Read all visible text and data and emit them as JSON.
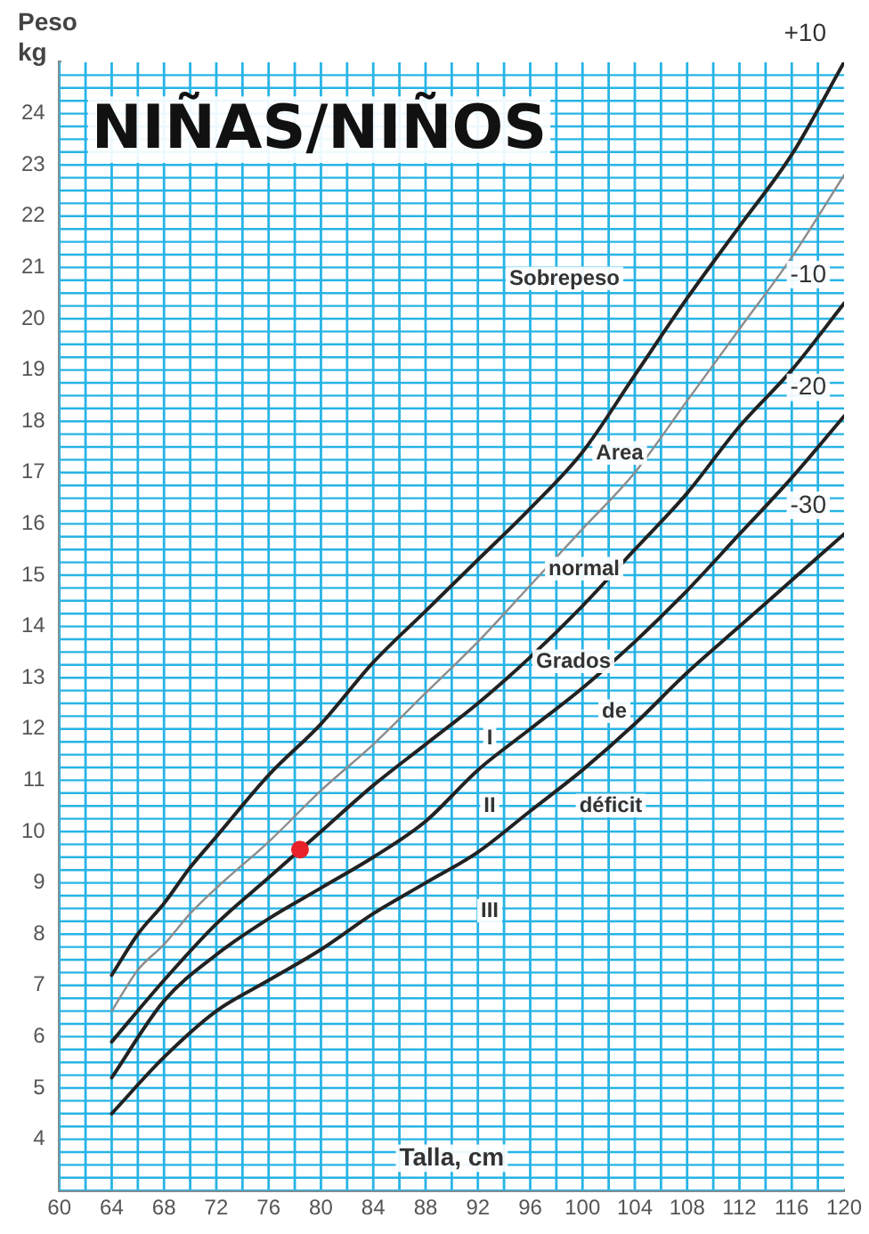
{
  "chart_data": {
    "type": "line",
    "title": "NIÑAS/NIÑOS",
    "xlabel": "Talla, cm",
    "ylabel": "Peso\nkg",
    "xlim": [
      60,
      120
    ],
    "xticks": [
      60,
      64,
      68,
      72,
      76,
      80,
      84,
      88,
      92,
      96,
      100,
      104,
      108,
      112,
      116,
      120
    ],
    "ylim": [
      3,
      25
    ],
    "yticks": [
      {
        "value": 3,
        "label": null
      },
      4,
      5,
      6,
      7,
      8,
      9,
      10,
      11,
      12,
      13,
      14,
      15,
      16,
      17,
      18,
      19,
      20,
      21,
      22,
      23,
      24,
      {
        "value": 25,
        "label": null
      }
    ],
    "grid": true,
    "legend": false,
    "marker": "none",
    "line_style": "solid",
    "series": [
      {
        "name": "+10",
        "color": "#222222",
        "x": [
          64,
          66,
          68,
          70,
          72,
          76,
          80,
          84,
          88,
          92,
          96,
          100,
          104,
          108,
          112,
          116,
          120
        ],
        "values": [
          7.2,
          8.0,
          8.6,
          9.3,
          9.9,
          11.1,
          12.1,
          13.3,
          14.3,
          15.3,
          16.3,
          17.4,
          18.9,
          20.4,
          21.8,
          23.2,
          25.0
        ]
      },
      {
        "color": "#8c8c8c",
        "x": [
          64,
          66,
          68,
          70,
          72,
          76,
          80,
          84,
          88,
          92,
          96,
          100,
          104,
          108,
          112,
          116,
          120
        ],
        "values": [
          6.5,
          7.3,
          7.8,
          8.4,
          8.9,
          9.8,
          10.8,
          11.7,
          12.7,
          13.7,
          14.8,
          15.9,
          17.0,
          18.4,
          19.8,
          21.2,
          22.8
        ]
      },
      {
        "name": "-10",
        "color": "#222222",
        "x": [
          64,
          68,
          72,
          76,
          80,
          84,
          88,
          92,
          96,
          100,
          104,
          108,
          112,
          116,
          120
        ],
        "values": [
          5.9,
          7.1,
          8.2,
          9.1,
          10.0,
          10.9,
          11.7,
          12.5,
          13.4,
          14.4,
          15.5,
          16.6,
          17.9,
          19.0,
          20.3
        ]
      },
      {
        "name": "-20",
        "color": "#222222",
        "x": [
          64,
          68,
          72,
          76,
          80,
          84,
          88,
          92,
          96,
          100,
          104,
          108,
          112,
          116,
          120
        ],
        "values": [
          5.2,
          6.7,
          7.6,
          8.3,
          8.9,
          9.5,
          10.2,
          11.2,
          12.0,
          12.8,
          13.7,
          14.7,
          15.8,
          16.9,
          18.1
        ]
      },
      {
        "name": "-30",
        "color": "#222222",
        "x": [
          64,
          68,
          72,
          76,
          80,
          84,
          88,
          92,
          96,
          100,
          104,
          108,
          112,
          116,
          120
        ],
        "values": [
          4.5,
          5.6,
          6.5,
          7.1,
          7.7,
          8.4,
          9.0,
          9.6,
          10.4,
          11.2,
          12.1,
          13.1,
          14.0,
          14.9,
          15.8
        ]
      },
      {
        "type": "scatter",
        "marker": "circle",
        "color": "#e8202a",
        "x": [
          78.4
        ],
        "values": [
          9.65
        ]
      }
    ],
    "annotations": [
      "Sobrepeso",
      "Area",
      "normal",
      "Grados",
      "de",
      "I",
      "II",
      "déficit",
      "III"
    ]
  }
}
